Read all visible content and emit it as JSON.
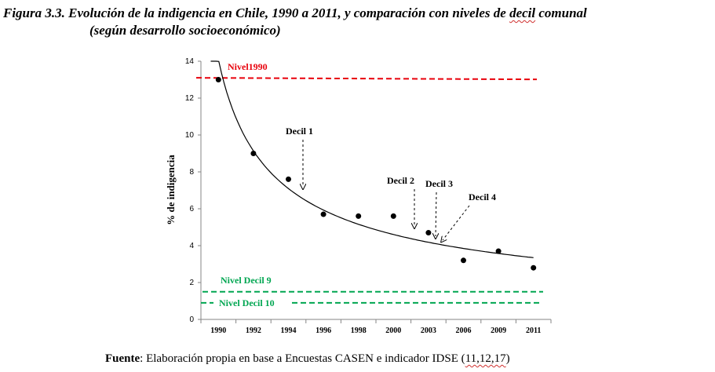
{
  "title": {
    "prefix": "Figura 3.3.",
    "text_before": "Evolución de la indigencia en Chile, 1990 a 2011, y comparación con niveles de",
    "underlined_word": "decil",
    "text_after": "comunal",
    "line2": "(según desarrollo socioeconómico)"
  },
  "chart_data": {
    "type": "scatter",
    "ylabel": "% de indigencia",
    "ylim": [
      0,
      14
    ],
    "yticks": [
      "0",
      "2",
      "4",
      "6",
      "8",
      "10",
      "12",
      "14"
    ],
    "categories": [
      "1990",
      "1992",
      "1994",
      "1996",
      "1998",
      "2000",
      "2003",
      "2006",
      "2009",
      "2011"
    ],
    "values": [
      13.0,
      9.0,
      7.6,
      5.7,
      5.6,
      5.6,
      4.7,
      3.2,
      3.7,
      2.8
    ],
    "trendline": "power",
    "reference_lines": [
      {
        "label": "Nivel1990",
        "value": 13.1,
        "color": "#e8000b",
        "style": "dashed"
      },
      {
        "label": "Nivel Decil 9",
        "value": 1.5,
        "color": "#00a651",
        "style": "dashed"
      },
      {
        "label": "Nivel Decil 10",
        "value": 0.9,
        "color": "#00a651",
        "style": "dashed"
      }
    ],
    "annotations": [
      {
        "label": "Decil 1",
        "points_to": "1995"
      },
      {
        "label": "Decil 2",
        "points_to": "2002"
      },
      {
        "label": "Decil 3",
        "points_to": "2003"
      },
      {
        "label": "Decil 4",
        "points_to": "2004"
      }
    ],
    "grid": false,
    "legend": "none"
  },
  "source": {
    "bold": "Fuente",
    "text": ": Elaboración propia en base a Encuestas CASEN e indicador IDSE (",
    "underlined": "11,12,17",
    "close": ")"
  }
}
